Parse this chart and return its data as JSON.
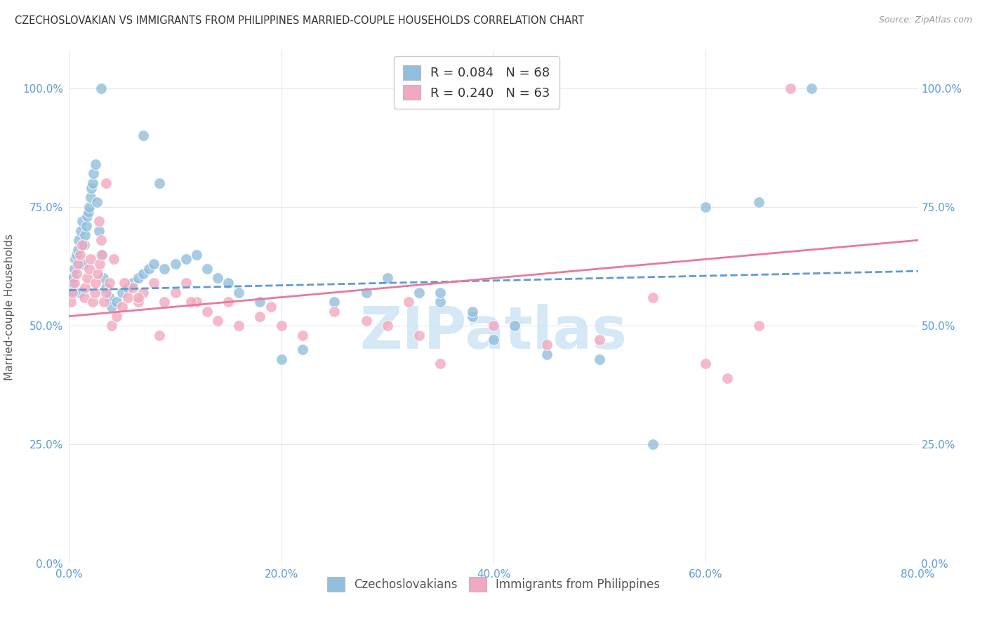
{
  "title": "CZECHOSLOVAKIAN VS IMMIGRANTS FROM PHILIPPINES MARRIED-COUPLE HOUSEHOLDS CORRELATION CHART",
  "source": "Source: ZipAtlas.com",
  "ylabel": "Married-couple Households",
  "ytick_labels": [
    "0.0%",
    "25.0%",
    "50.0%",
    "75.0%",
    "100.0%"
  ],
  "ytick_values": [
    0,
    25,
    50,
    75,
    100
  ],
  "xtick_positions": [
    0,
    20,
    40,
    60,
    80
  ],
  "xtick_labels": [
    "0.0%",
    "20.0%",
    "40.0%",
    "60.0%",
    "80.0%"
  ],
  "xlim": [
    0,
    80
  ],
  "ylim": [
    0,
    108
  ],
  "legend_label_blue": "R = 0.084   N = 68",
  "legend_label_pink": "R = 0.240   N = 63",
  "blue_scatter_x": [
    0.2,
    0.3,
    0.4,
    0.5,
    0.6,
    0.7,
    0.8,
    0.9,
    1.0,
    1.1,
    1.2,
    1.3,
    1.4,
    1.5,
    1.6,
    1.7,
    1.8,
    1.9,
    2.0,
    2.1,
    2.2,
    2.3,
    2.5,
    2.6,
    2.8,
    3.0,
    3.2,
    3.5,
    3.8,
    4.0,
    4.5,
    5.0,
    5.5,
    6.0,
    6.5,
    7.0,
    7.5,
    8.0,
    9.0,
    10.0,
    11.0,
    12.0,
    13.0,
    14.0,
    15.0,
    16.0,
    18.0,
    20.0,
    22.0,
    25.0,
    28.0,
    30.0,
    33.0,
    35.0,
    38.0,
    40.0,
    45.0,
    50.0,
    55.0,
    60.0,
    65.0,
    70.0,
    35.0,
    38.0,
    42.0,
    7.0,
    8.5,
    3.0
  ],
  "blue_scatter_y": [
    57,
    59,
    60,
    62,
    64,
    65,
    66,
    68,
    57,
    70,
    72,
    63,
    67,
    69,
    71,
    73,
    74,
    75,
    77,
    79,
    80,
    82,
    84,
    76,
    70,
    65,
    60,
    58,
    56,
    54,
    55,
    57,
    58,
    59,
    60,
    61,
    62,
    63,
    62,
    63,
    64,
    65,
    62,
    60,
    59,
    57,
    55,
    43,
    45,
    55,
    57,
    60,
    57,
    55,
    52,
    47,
    44,
    43,
    25,
    75,
    76,
    100,
    57,
    53,
    50,
    90,
    80,
    100
  ],
  "pink_scatter_x": [
    0.2,
    0.3,
    0.5,
    0.7,
    0.8,
    1.0,
    1.2,
    1.4,
    1.5,
    1.7,
    1.9,
    2.0,
    2.2,
    2.4,
    2.5,
    2.7,
    2.9,
    3.1,
    3.3,
    3.5,
    3.8,
    4.0,
    4.5,
    5.0,
    5.5,
    6.0,
    6.5,
    7.0,
    8.0,
    9.0,
    10.0,
    11.0,
    12.0,
    13.0,
    14.0,
    15.0,
    16.0,
    18.0,
    20.0,
    22.0,
    25.0,
    28.0,
    30.0,
    33.0,
    35.0,
    40.0,
    45.0,
    50.0,
    55.0,
    60.0,
    62.0,
    65.0,
    68.0,
    2.8,
    3.0,
    3.5,
    4.2,
    5.2,
    6.5,
    8.5,
    11.5,
    19.0,
    32.0
  ],
  "pink_scatter_y": [
    55,
    57,
    59,
    61,
    63,
    65,
    67,
    56,
    58,
    60,
    62,
    64,
    55,
    57,
    59,
    61,
    63,
    65,
    55,
    57,
    59,
    50,
    52,
    54,
    56,
    58,
    55,
    57,
    59,
    55,
    57,
    59,
    55,
    53,
    51,
    55,
    50,
    52,
    50,
    48,
    53,
    51,
    50,
    48,
    42,
    50,
    46,
    47,
    56,
    42,
    39,
    50,
    100,
    72,
    68,
    80,
    64,
    59,
    56,
    48,
    55,
    54,
    55
  ],
  "blue_line_x0": 0,
  "blue_line_x1": 80,
  "blue_line_y0": 57.5,
  "blue_line_y1": 61.5,
  "pink_line_x0": 0,
  "pink_line_x1": 80,
  "pink_line_y0": 52.0,
  "pink_line_y1": 68.0,
  "blue_color": "#91bedd",
  "pink_color": "#f2a8bf",
  "blue_line_color": "#5b9bd5",
  "pink_line_color": "#e8799a",
  "watermark_text": "ZIPatlas",
  "watermark_color": "#cde4f5",
  "background_color": "#ffffff",
  "grid_color": "#e8e8e8",
  "tick_color": "#5b9bd5",
  "ylabel_color": "#555555",
  "title_color": "#333333",
  "source_color": "#999999"
}
